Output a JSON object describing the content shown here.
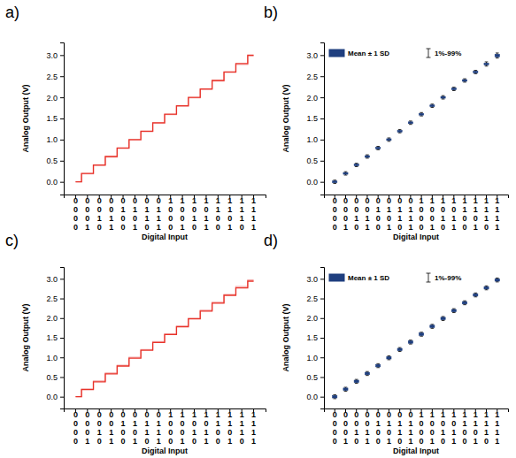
{
  "chart_data": [
    {
      "type": "line",
      "title": "a)",
      "x_label": "Digital Input",
      "y_label": "Analog Output (V)",
      "categories": [
        "0000",
        "0001",
        "0010",
        "0011",
        "0100",
        "0101",
        "0110",
        "0111",
        "1000",
        "1001",
        "1010",
        "1011",
        "1100",
        "1101",
        "1110",
        "1111"
      ],
      "series": [
        {
          "color": "#f4a6a6",
          "values": [
            0,
            0.19,
            0.39,
            0.59,
            0.79,
            0.99,
            1.19,
            1.39,
            1.59,
            1.79,
            1.99,
            2.19,
            2.39,
            2.59,
            2.78,
            2.98
          ]
        },
        {
          "color": "#e8332a",
          "values": [
            0,
            0.2,
            0.4,
            0.6,
            0.8,
            1.0,
            1.2,
            1.4,
            1.6,
            1.8,
            2.0,
            2.2,
            2.4,
            2.6,
            2.8,
            3.0
          ]
        }
      ],
      "line_style": "step",
      "ylim": [
        -0.3,
        3.3
      ],
      "yticks": [
        {
          "value": 0,
          "label": "0.0"
        },
        0.5,
        {
          "value": 1,
          "label": "1.0"
        },
        1.5,
        {
          "value": 2,
          "label": "2.0"
        },
        2.5,
        {
          "value": 3,
          "label": "3.0"
        }
      ]
    },
    {
      "type": "box",
      "title": "b)",
      "x_label": "Digital Input",
      "y_label": "Analog Output (V)",
      "categories": [
        "0000",
        "0001",
        "0010",
        "0011",
        "0100",
        "0101",
        "0110",
        "0111",
        "1000",
        "1001",
        "1010",
        "1011",
        "1100",
        "1101",
        "1110",
        "1111"
      ],
      "series": [
        {
          "name": "Mean ± 1 SD",
          "color": "#1f3f7f",
          "values": [
            0,
            0.2,
            0.4,
            0.6,
            0.8,
            1.0,
            1.2,
            1.4,
            1.6,
            1.8,
            2.0,
            2.2,
            2.4,
            2.6,
            2.79,
            2.99
          ],
          "sd": [
            0.02,
            0.02,
            0.02,
            0.02,
            0.02,
            0.02,
            0.02,
            0.02,
            0.02,
            0.02,
            0.02,
            0.02,
            0.02,
            0.02,
            0.02,
            0.03
          ]
        },
        {
          "name": "1%-99%",
          "color": "#000000",
          "low": [
            -0.04,
            0.16,
            0.36,
            0.56,
            0.76,
            0.96,
            1.16,
            1.36,
            1.56,
            1.76,
            1.96,
            2.16,
            2.36,
            2.56,
            2.74,
            2.93
          ],
          "high": [
            0.04,
            0.24,
            0.44,
            0.64,
            0.84,
            1.04,
            1.24,
            1.44,
            1.64,
            1.84,
            2.04,
            2.24,
            2.44,
            2.64,
            2.84,
            3.05
          ]
        }
      ],
      "legend": "top-left",
      "ylim": [
        -0.3,
        3.3
      ],
      "yticks": [
        {
          "value": 0,
          "label": "0.0"
        },
        0.5,
        {
          "value": 1,
          "label": "1.0"
        },
        1.5,
        {
          "value": 2,
          "label": "2.0"
        },
        2.5,
        {
          "value": 3,
          "label": "3.0"
        }
      ]
    },
    {
      "type": "line",
      "title": "c)",
      "x_label": "Digital Input",
      "y_label": "Analog Output (V)",
      "categories": [
        "0000",
        "0001",
        "0010",
        "0011",
        "0100",
        "0101",
        "0110",
        "0111",
        "1000",
        "1001",
        "1010",
        "1011",
        "1100",
        "1101",
        "1110",
        "1111"
      ],
      "series": [
        {
          "color": "#f4a6a6",
          "values": [
            0,
            0.2,
            0.4,
            0.6,
            0.8,
            1.0,
            1.2,
            1.4,
            1.6,
            1.8,
            2.0,
            2.2,
            2.4,
            2.6,
            2.8,
            2.97
          ]
        },
        {
          "color": "#e8332a",
          "values": [
            0,
            0.18,
            0.38,
            0.58,
            0.78,
            0.98,
            1.18,
            1.38,
            1.58,
            1.78,
            1.98,
            2.18,
            2.38,
            2.58,
            2.77,
            2.94
          ]
        }
      ],
      "line_style": "step",
      "ylim": [
        -0.3,
        3.3
      ],
      "yticks": [
        {
          "value": 0,
          "label": "0.0"
        },
        0.5,
        {
          "value": 1,
          "label": "1.0"
        },
        1.5,
        {
          "value": 2,
          "label": "2.0"
        },
        2.5,
        {
          "value": 3,
          "label": "3.0"
        }
      ]
    },
    {
      "type": "box",
      "title": "d)",
      "x_label": "Digital Input",
      "y_label": "Analog Output (V)",
      "categories": [
        "0000",
        "0001",
        "0010",
        "0011",
        "0100",
        "0101",
        "0110",
        "0111",
        "1000",
        "1001",
        "1010",
        "1011",
        "1100",
        "1101",
        "1110",
        "1111"
      ],
      "series": [
        {
          "name": "Mean ± 1 SD",
          "color": "#1f3f7f",
          "values": [
            0,
            0.19,
            0.39,
            0.59,
            0.79,
            0.99,
            1.2,
            1.39,
            1.59,
            1.79,
            1.99,
            2.19,
            2.39,
            2.59,
            2.77,
            2.97
          ],
          "sd": [
            0.03,
            0.03,
            0.03,
            0.03,
            0.03,
            0.03,
            0.03,
            0.03,
            0.03,
            0.03,
            0.03,
            0.03,
            0.03,
            0.03,
            0.03,
            0.03
          ]
        },
        {
          "name": "1%-99%",
          "color": "#000000",
          "low": [
            -0.05,
            0.14,
            0.34,
            0.54,
            0.74,
            0.94,
            1.15,
            1.34,
            1.54,
            1.74,
            1.94,
            2.14,
            2.34,
            2.54,
            2.72,
            2.92
          ],
          "high": [
            0.05,
            0.24,
            0.44,
            0.64,
            0.84,
            1.04,
            1.25,
            1.44,
            1.64,
            1.84,
            2.04,
            2.24,
            2.44,
            2.64,
            2.82,
            3.02
          ]
        }
      ],
      "legend": "top-left",
      "ylim": [
        -0.3,
        3.3
      ],
      "yticks": [
        {
          "value": 0,
          "label": "0.0"
        },
        0.5,
        {
          "value": 1,
          "label": "1.0"
        },
        1.5,
        {
          "value": 2,
          "label": "2.0"
        },
        2.5,
        {
          "value": 3,
          "label": "3.0"
        }
      ]
    }
  ]
}
